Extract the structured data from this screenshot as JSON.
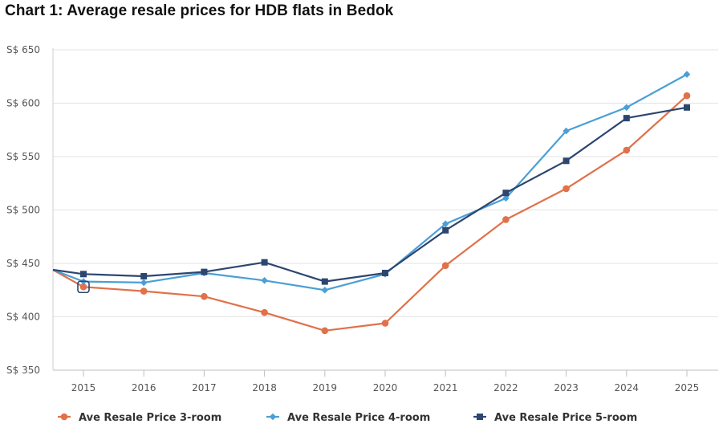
{
  "title": "Chart 1: Average resale prices for HDB flats in Bedok",
  "chart_data": {
    "type": "line",
    "title": "Chart 1: Average resale prices for HDB flats in Bedok",
    "x": [
      "2015",
      "2016",
      "2017",
      "2018",
      "2019",
      "2020",
      "2021",
      "2022",
      "2023",
      "2024",
      "2025"
    ],
    "y_tick_labels": [
      "S$ 350",
      "S$ 400",
      "S$ 450",
      "S$ 500",
      "S$ 550",
      "S$ 600",
      "S$ 650"
    ],
    "y_ticks": [
      350,
      400,
      450,
      500,
      550,
      600,
      650
    ],
    "ylim": [
      350,
      650
    ],
    "grid": true,
    "legend_position": "bottom",
    "series": [
      {
        "name": "Ave Resale Price 3-room",
        "color": "#e0714a",
        "marker": "circle",
        "start_value": 444,
        "values": [
          428,
          424,
          419,
          404,
          387,
          394,
          448,
          491,
          520,
          556,
          607
        ]
      },
      {
        "name": "Ave Resale Price 4-room",
        "color": "#4a9fd6",
        "marker": "diamond",
        "start_value": 444,
        "values": [
          433,
          432,
          441,
          434,
          425,
          440,
          487,
          511,
          574,
          596,
          627
        ]
      },
      {
        "name": "Ave Resale Price 5-room",
        "color": "#2c4670",
        "marker": "square",
        "start_value": 444,
        "values": [
          440,
          438,
          442,
          451,
          433,
          441,
          481,
          516,
          546,
          586,
          596
        ]
      }
    ]
  }
}
